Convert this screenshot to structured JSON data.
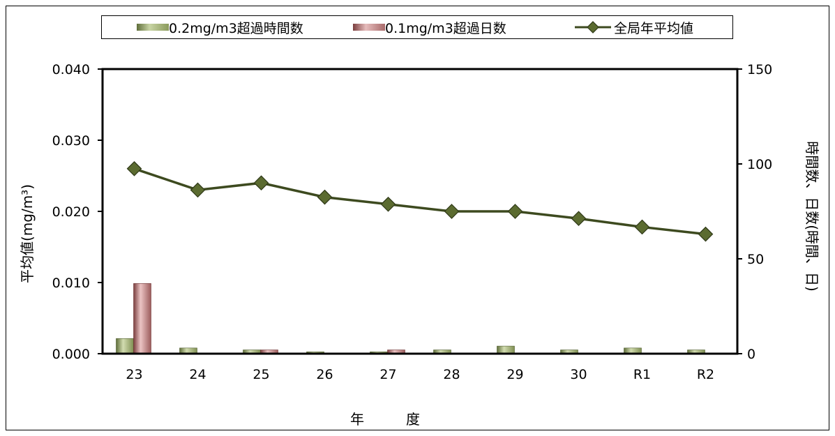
{
  "chart_data": {
    "type": "bar+line",
    "categories": [
      "23",
      "24",
      "25",
      "26",
      "27",
      "28",
      "29",
      "30",
      "R1",
      "R2"
    ],
    "series": [
      {
        "name": "0.2mg/m3超過時間数",
        "type": "bar",
        "axis": "right",
        "color": "#8a9a5b",
        "values": [
          8,
          3,
          2,
          1,
          1,
          2,
          4,
          2,
          3,
          2
        ]
      },
      {
        "name": "0.1mg/m3超過日数",
        "type": "bar",
        "axis": "right",
        "color": "#a86a6a",
        "values": [
          37,
          0,
          2,
          0,
          2,
          0,
          0,
          0,
          0,
          0
        ]
      },
      {
        "name": "全局年平均値",
        "type": "line",
        "axis": "left",
        "color": "#4a5a2a",
        "marker": "diamond",
        "values": [
          0.026,
          0.023,
          0.024,
          0.022,
          0.021,
          0.02,
          0.02,
          0.019,
          0.0178,
          0.0168
        ]
      }
    ],
    "xlabel": "年　　　度",
    "ylabel_left": "平均値(mg/m³)",
    "ylabel_right": "時間数、日数(時間、日)",
    "ylim_left": [
      0,
      0.04
    ],
    "ylim_right": [
      0,
      150
    ],
    "yticks_left": [
      "0.000",
      "0.010",
      "0.020",
      "0.030",
      "0.040"
    ],
    "yticks_right": [
      "0",
      "50",
      "100",
      "150"
    ],
    "grid": false,
    "legend_position": "top"
  }
}
